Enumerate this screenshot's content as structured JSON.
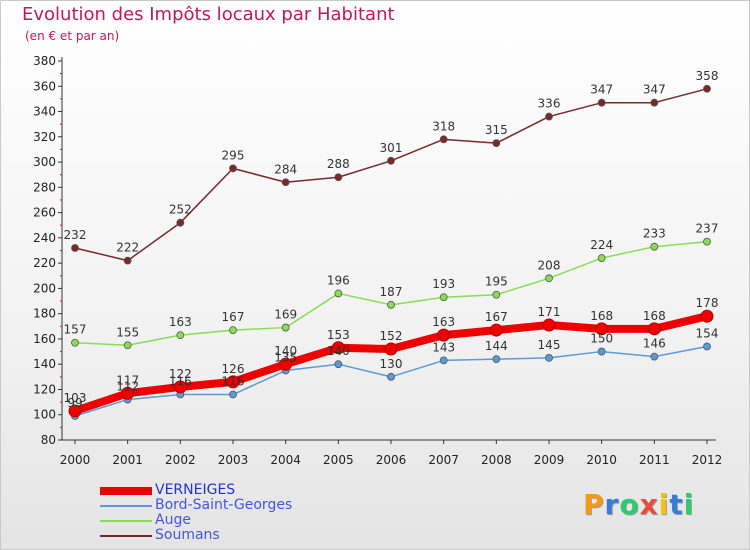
{
  "title": "Evolution des Impôts locaux par Habitant",
  "subtitle": "(en € et par an)",
  "logo": {
    "text": "Proxiti",
    "colors": [
      "#f39c12",
      "#3a7bd5",
      "#2ecc71",
      "#e74c3c",
      "#f1c40f",
      "#3a7bd5",
      "#2ecc71"
    ]
  },
  "chart_data": {
    "type": "line",
    "title": "Evolution des Impôts locaux par Habitant",
    "subtitle": "(en € et par an)",
    "xlabel": "",
    "ylabel": "",
    "x": [
      "2000",
      "2001",
      "2002",
      "2003",
      "2004",
      "2005",
      "2006",
      "2007",
      "2008",
      "2009",
      "2010",
      "2011",
      "2012"
    ],
    "ylim": [
      80,
      380
    ],
    "yticks": [
      80,
      100,
      120,
      140,
      160,
      180,
      200,
      220,
      240,
      260,
      280,
      300,
      320,
      340,
      360,
      380
    ],
    "grid": false,
    "legend_position": "bottom-left",
    "series": [
      {
        "name": "VERNEIGES",
        "color": "#ee0000",
        "values": [
          103,
          117,
          122,
          126,
          140,
          153,
          152,
          163,
          167,
          171,
          168,
          168,
          178
        ],
        "emphasis": "thick"
      },
      {
        "name": "Bord-Saint-Georges",
        "color": "#5b9bd5",
        "values": [
          99,
          112,
          116,
          116,
          135,
          140,
          130,
          143,
          144,
          145,
          150,
          146,
          154
        ]
      },
      {
        "name": "Auge",
        "color": "#88dd55",
        "values": [
          157,
          155,
          163,
          167,
          169,
          196,
          187,
          193,
          195,
          208,
          224,
          233,
          237
        ]
      },
      {
        "name": "Soumans",
        "color": "#7a2828",
        "values": [
          232,
          222,
          252,
          295,
          284,
          288,
          301,
          318,
          315,
          336,
          347,
          347,
          358
        ]
      }
    ]
  }
}
